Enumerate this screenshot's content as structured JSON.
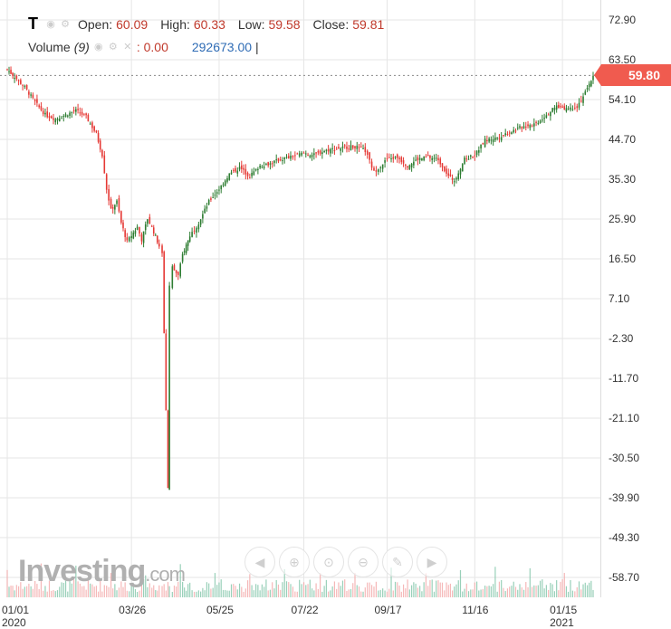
{
  "legend": {
    "symbol": "T",
    "open_label": "Open:",
    "open": "60.09",
    "high_label": "High:",
    "high": "60.33",
    "low_label": "Low:",
    "low": "59.58",
    "close_label": "Close:",
    "close": "59.81"
  },
  "volume": {
    "label": "Volume",
    "period": "(9)",
    "value": ": 0.00",
    "volume": "292673.00",
    "sep": "|"
  },
  "last_price": "59.80",
  "logo": {
    "main": "Investing",
    "suffix": ".com"
  },
  "colors": {
    "up": "#2e7d32",
    "down": "#e53935",
    "grid": "#e6e6e6",
    "price_tag": "#f05b4f",
    "vol_up": "#7fc4a8",
    "vol_down": "#f3a6a6"
  },
  "toolbar_icons": [
    "scroll-left-icon",
    "zoom-in-icon",
    "zoom-reset-icon",
    "zoom-out-icon",
    "draw-icon",
    "scroll-right-icon"
  ],
  "chart_data": {
    "type": "candlestick",
    "title": "",
    "xlabel": "",
    "ylabel": "",
    "ylim": [
      -63.4,
      77.6
    ],
    "y_ticks": [
      "72.90",
      "63.50",
      "54.10",
      "44.70",
      "35.30",
      "25.90",
      "16.50",
      "7.10",
      "-2.30",
      "-11.70",
      "-21.10",
      "-30.50",
      "-39.90",
      "-49.30",
      "-58.70"
    ],
    "x_ticks": [
      {
        "label": "01/01",
        "year": "2020",
        "date": "2020-01-01"
      },
      {
        "label": "03/26",
        "year": "",
        "date": "2020-03-26"
      },
      {
        "label": "05/25",
        "year": "",
        "date": "2020-05-25"
      },
      {
        "label": "07/22",
        "year": "",
        "date": "2020-07-22"
      },
      {
        "label": "09/17",
        "year": "",
        "date": "2020-09-17"
      },
      {
        "label": "11/16",
        "year": "",
        "date": "2020-11-16"
      },
      {
        "label": "01/15",
        "year": "2021",
        "date": "2021-01-15"
      }
    ],
    "x_range": [
      "2020-01-01",
      "2021-02-05"
    ],
    "grid": true,
    "close_series": [
      [
        "2020-01-01",
        61.2
      ],
      [
        "2020-01-06",
        59.5
      ],
      [
        "2020-01-13",
        57.0
      ],
      [
        "2020-01-20",
        53.5
      ],
      [
        "2020-01-27",
        50.5
      ],
      [
        "2020-02-03",
        49.5
      ],
      [
        "2020-02-10",
        50.5
      ],
      [
        "2020-02-17",
        51.5
      ],
      [
        "2020-02-24",
        50.0
      ],
      [
        "2020-03-02",
        46.0
      ],
      [
        "2020-03-06",
        41.0
      ],
      [
        "2020-03-09",
        33.0
      ],
      [
        "2020-03-12",
        28.0
      ],
      [
        "2020-03-16",
        30.0
      ],
      [
        "2020-03-19",
        25.0
      ],
      [
        "2020-03-23",
        20.5
      ],
      [
        "2020-03-26",
        22.0
      ],
      [
        "2020-03-30",
        24.0
      ],
      [
        "2020-04-02",
        21.0
      ],
      [
        "2020-04-06",
        26.0
      ],
      [
        "2020-04-09",
        24.0
      ],
      [
        "2020-04-14",
        19.5
      ],
      [
        "2020-04-16",
        17.5
      ],
      [
        "2020-04-20",
        -37.6
      ],
      [
        "2020-04-21",
        10.0
      ],
      [
        "2020-04-23",
        14.5
      ],
      [
        "2020-04-27",
        12.5
      ],
      [
        "2020-04-30",
        17.5
      ],
      [
        "2020-05-05",
        22.0
      ],
      [
        "2020-05-11",
        25.0
      ],
      [
        "2020-05-18",
        30.0
      ],
      [
        "2020-05-25",
        33.0
      ],
      [
        "2020-06-01",
        36.5
      ],
      [
        "2020-06-08",
        38.0
      ],
      [
        "2020-06-15",
        36.0
      ],
      [
        "2020-06-22",
        38.5
      ],
      [
        "2020-06-29",
        39.0
      ],
      [
        "2020-07-06",
        40.0
      ],
      [
        "2020-07-13",
        40.5
      ],
      [
        "2020-07-22",
        41.5
      ],
      [
        "2020-07-29",
        41.0
      ],
      [
        "2020-08-05",
        42.0
      ],
      [
        "2020-08-12",
        42.5
      ],
      [
        "2020-08-19",
        42.8
      ],
      [
        "2020-08-26",
        43.0
      ],
      [
        "2020-09-02",
        42.0
      ],
      [
        "2020-09-08",
        37.0
      ],
      [
        "2020-09-17",
        40.0
      ],
      [
        "2020-09-24",
        40.5
      ],
      [
        "2020-10-01",
        38.5
      ],
      [
        "2020-10-08",
        40.0
      ],
      [
        "2020-10-15",
        40.5
      ],
      [
        "2020-10-22",
        40.0
      ],
      [
        "2020-10-29",
        36.0
      ],
      [
        "2020-11-02",
        35.0
      ],
      [
        "2020-11-09",
        40.0
      ],
      [
        "2020-11-16",
        41.0
      ],
      [
        "2020-11-23",
        44.5
      ],
      [
        "2020-11-30",
        45.0
      ],
      [
        "2020-12-07",
        46.0
      ],
      [
        "2020-12-14",
        47.0
      ],
      [
        "2020-12-21",
        48.0
      ],
      [
        "2020-12-28",
        48.5
      ],
      [
        "2021-01-04",
        50.5
      ],
      [
        "2021-01-11",
        52.5
      ],
      [
        "2021-01-19",
        52.0
      ],
      [
        "2021-01-25",
        52.5
      ],
      [
        "2021-02-01",
        56.5
      ],
      [
        "2021-02-05",
        59.8
      ]
    ],
    "last_price": 59.8
  }
}
